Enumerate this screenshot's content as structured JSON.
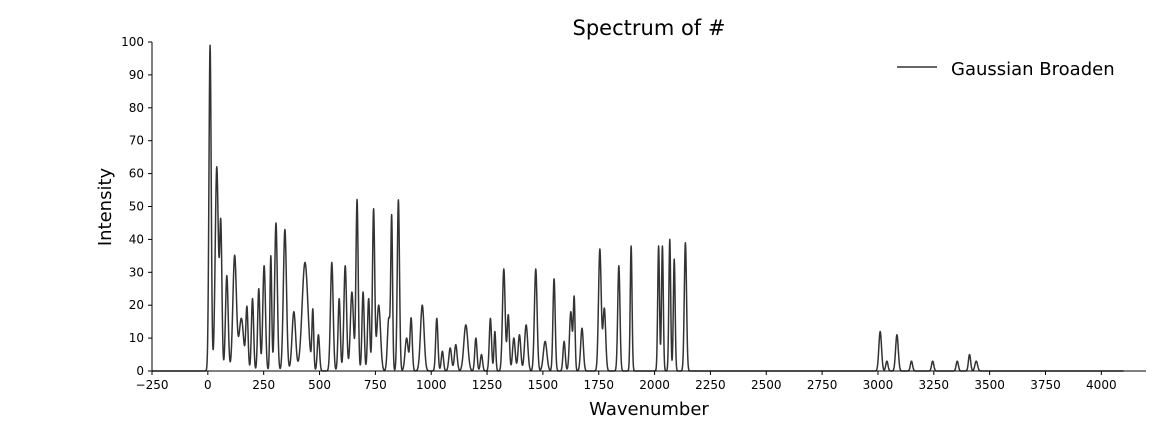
{
  "chart_data": {
    "type": "line",
    "title": "Spectrum of #",
    "xlabel": "Wavenumber",
    "ylabel": "Intensity",
    "xlim": [
      -250,
      4200
    ],
    "ylim": [
      0,
      100
    ],
    "x_ticks": [
      -250,
      0,
      250,
      500,
      750,
      1000,
      1250,
      1500,
      1750,
      2000,
      2250,
      2500,
      2750,
      3000,
      3250,
      3500,
      3750,
      4000
    ],
    "y_ticks": [
      0,
      10,
      20,
      30,
      40,
      50,
      60,
      70,
      80,
      90,
      100
    ],
    "grid": false,
    "legend_position": "top-right",
    "line_color": "#333333",
    "series": [
      {
        "name": "Gaussian Broaden",
        "x_range": [
          -250,
          4100
        ],
        "peaks": [
          [
            10,
            99,
            5
          ],
          [
            40,
            62,
            7
          ],
          [
            58,
            44,
            5
          ],
          [
            85,
            29,
            6
          ],
          [
            120,
            35,
            8
          ],
          [
            150,
            16,
            10
          ],
          [
            175,
            19,
            5
          ],
          [
            200,
            22,
            5
          ],
          [
            228,
            25,
            5
          ],
          [
            252,
            32,
            6
          ],
          [
            282,
            35,
            4
          ],
          [
            305,
            45,
            6
          ],
          [
            345,
            43,
            7
          ],
          [
            385,
            18,
            8
          ],
          [
            435,
            33,
            13
          ],
          [
            470,
            18,
            4
          ],
          [
            495,
            11,
            5
          ],
          [
            555,
            33,
            6
          ],
          [
            588,
            22,
            5
          ],
          [
            615,
            32,
            6
          ],
          [
            645,
            24,
            7
          ],
          [
            668,
            52,
            5
          ],
          [
            695,
            24,
            5
          ],
          [
            720,
            22,
            5
          ],
          [
            742,
            49,
            5
          ],
          [
            765,
            20,
            8
          ],
          [
            810,
            16,
            6
          ],
          [
            823,
            46,
            4
          ],
          [
            853,
            52,
            5
          ],
          [
            890,
            10,
            7
          ],
          [
            910,
            16,
            5
          ],
          [
            960,
            20,
            8
          ],
          [
            1025,
            16,
            5
          ],
          [
            1050,
            6,
            5
          ],
          [
            1085,
            7,
            6
          ],
          [
            1110,
            8,
            6
          ],
          [
            1155,
            14,
            9
          ],
          [
            1200,
            10,
            5
          ],
          [
            1225,
            5,
            5
          ],
          [
            1265,
            16,
            5
          ],
          [
            1285,
            12,
            4
          ],
          [
            1325,
            31,
            6
          ],
          [
            1345,
            17,
            5
          ],
          [
            1370,
            10,
            6
          ],
          [
            1395,
            11,
            6
          ],
          [
            1425,
            14,
            7
          ],
          [
            1468,
            31,
            6
          ],
          [
            1510,
            9,
            8
          ],
          [
            1550,
            28,
            5
          ],
          [
            1595,
            9,
            5
          ],
          [
            1625,
            18,
            6
          ],
          [
            1640,
            22,
            4
          ],
          [
            1675,
            13,
            6
          ],
          [
            1755,
            37,
            6
          ],
          [
            1775,
            19,
            6
          ],
          [
            1840,
            32,
            5
          ],
          [
            1895,
            38,
            4
          ],
          [
            2018,
            38,
            4
          ],
          [
            2035,
            38,
            4
          ],
          [
            2068,
            40,
            4
          ],
          [
            2088,
            34,
            4
          ],
          [
            2138,
            39,
            5
          ],
          [
            3010,
            12,
            6
          ],
          [
            3040,
            3,
            5
          ],
          [
            3085,
            11,
            6
          ],
          [
            3150,
            3,
            5
          ],
          [
            3245,
            3,
            5
          ],
          [
            3355,
            3,
            5
          ],
          [
            3410,
            5,
            5
          ],
          [
            3440,
            3,
            6
          ]
        ]
      }
    ]
  }
}
